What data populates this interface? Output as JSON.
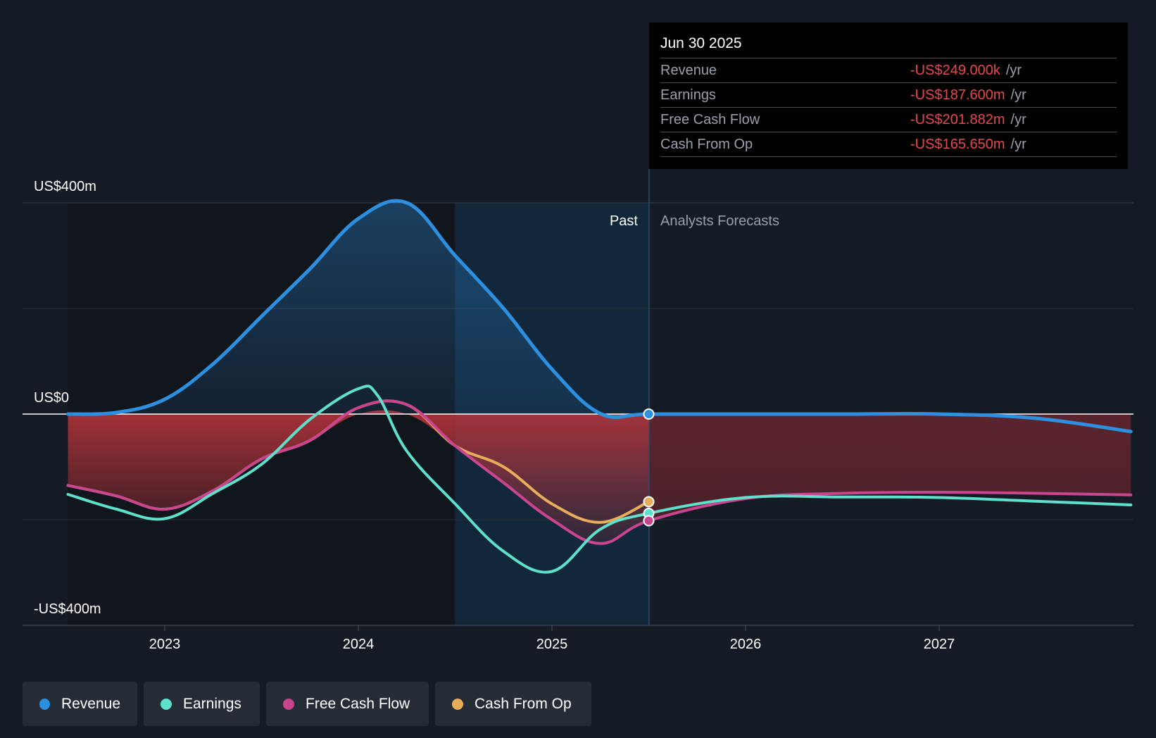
{
  "tooltip": {
    "date": "Jun 30 2025",
    "rows": [
      {
        "name": "Revenue",
        "value": "-US$249.000k",
        "unit": "/yr"
      },
      {
        "name": "Earnings",
        "value": "-US$187.600m",
        "unit": "/yr"
      },
      {
        "name": "Free Cash Flow",
        "value": "-US$201.882m",
        "unit": "/yr"
      },
      {
        "name": "Cash From Op",
        "value": "-US$165.650m",
        "unit": "/yr"
      }
    ]
  },
  "legend": [
    {
      "label": "Revenue",
      "color": "#2d8fe0"
    },
    {
      "label": "Earnings",
      "color": "#5fe0cc"
    },
    {
      "label": "Free Cash Flow",
      "color": "#c94590"
    },
    {
      "label": "Cash From Op",
      "color": "#e8ad5a"
    }
  ],
  "chart_data": {
    "type": "line",
    "title": "",
    "y_unit": "US$ millions",
    "ylim": [
      -400,
      400
    ],
    "y_ticks": [
      400,
      0,
      -400
    ],
    "y_tick_labels": [
      "US$400m",
      "US$0",
      "-US$400m"
    ],
    "x_ticks": [
      2023,
      2024,
      2025,
      2026,
      2027
    ],
    "x_tick_labels": [
      "2023",
      "2024",
      "2025",
      "2026",
      "2027"
    ],
    "xlim": [
      2022.25,
      2027.99
    ],
    "past_label": "Past",
    "forecast_label": "Analysts Forecasts",
    "forecast_start": 2025.5,
    "highlight_start": 2024.5,
    "series": [
      {
        "name": "Revenue",
        "color": "#2d8fe0",
        "x": [
          2022.5,
          2022.75,
          2023.0,
          2023.25,
          2023.5,
          2023.75,
          2024.0,
          2024.25,
          2024.5,
          2024.75,
          2025.0,
          2025.25,
          2025.5,
          2026.0,
          2026.5,
          2027.0,
          2027.5,
          2027.99
        ],
        "y": [
          0,
          3,
          28,
          95,
          185,
          275,
          370,
          400,
          300,
          200,
          85,
          1,
          0,
          0,
          0,
          0,
          -8,
          -33
        ]
      },
      {
        "name": "Earnings",
        "color": "#5fe0cc",
        "x": [
          2022.5,
          2022.75,
          2023.0,
          2023.25,
          2023.5,
          2023.75,
          2024.0,
          2024.1,
          2024.25,
          2024.5,
          2024.75,
          2025.0,
          2025.25,
          2025.5,
          2026.0,
          2026.5,
          2027.0,
          2027.5,
          2027.99
        ],
        "y": [
          -152,
          -180,
          -198,
          -150,
          -95,
          -10,
          48,
          35,
          -70,
          -170,
          -260,
          -298,
          -218,
          -188,
          -158,
          -157,
          -158,
          -165,
          -172
        ]
      },
      {
        "name": "Free Cash Flow",
        "color": "#c94590",
        "x": [
          2022.5,
          2022.75,
          2023.0,
          2023.25,
          2023.5,
          2023.75,
          2024.0,
          2024.25,
          2024.5,
          2024.75,
          2025.0,
          2025.25,
          2025.5,
          2026.0,
          2026.5,
          2027.0,
          2027.5,
          2027.99
        ],
        "y": [
          -135,
          -155,
          -180,
          -145,
          -85,
          -50,
          12,
          18,
          -60,
          -130,
          -200,
          -245,
          -202,
          -160,
          -150,
          -148,
          -150,
          -153
        ]
      },
      {
        "name": "Cash From Op",
        "color": "#e8ad5a",
        "x": [
          2022.5,
          2022.75,
          2023.0,
          2023.25,
          2023.5,
          2023.75,
          2024.0,
          2024.25,
          2024.5,
          2024.75,
          2025.0,
          2025.25,
          2025.5
        ],
        "y": [
          -135,
          -155,
          -180,
          -145,
          -85,
          -50,
          12,
          18,
          -60,
          -100,
          -170,
          -205,
          -166
        ]
      }
    ]
  }
}
